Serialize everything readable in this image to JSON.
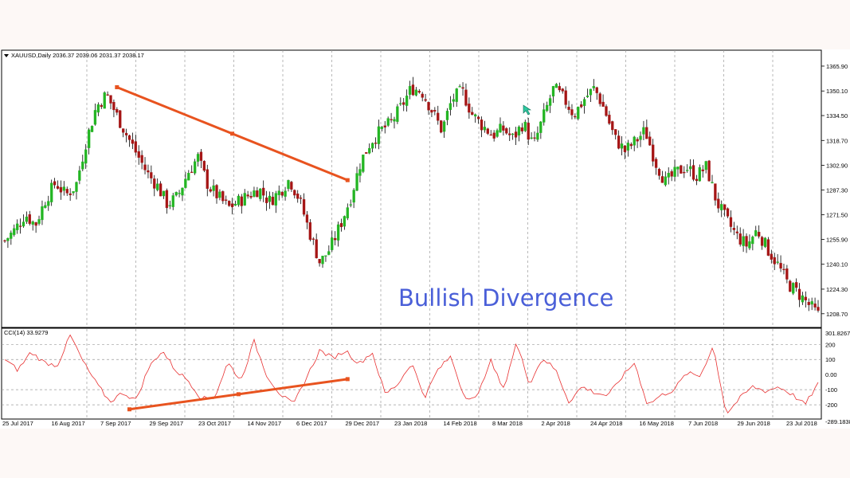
{
  "chart_data": [
    {
      "type": "candlestick",
      "header": "XAUUSD,Daily  2036.37 2039.06 2031.37 2038.17",
      "ylim": [
        1200,
        1376
      ],
      "y_ticks": [
        "1365.90",
        "1350.10",
        "1334.50",
        "1318.70",
        "1302.90",
        "1287.30",
        "1271.50",
        "1255.90",
        "1240.10",
        "1224.30",
        "1208.70"
      ],
      "y_tick_values": [
        1365.9,
        1350.1,
        1334.5,
        1318.7,
        1302.9,
        1287.3,
        1271.5,
        1255.9,
        1240.1,
        1224.3,
        1208.7
      ],
      "x_ticks": [
        "25 Jul 2017",
        "16 Aug 2017",
        "7 Sep 2017",
        "29 Sep 2017",
        "23 Oct 2017",
        "14 Nov 2017",
        "6 Dec 2017",
        "29 Dec 2017",
        "23 Jan 2018",
        "14 Feb 2018",
        "8 Mar 2018",
        "2 Apr 2018",
        "24 Apr 2018",
        "16 May 2018",
        "7 Jun 2018",
        "29 Jun 2018",
        "23 Jul 2018"
      ],
      "close_path": [
        1255,
        1262,
        1272,
        1265,
        1281,
        1292,
        1284,
        1290,
        1318,
        1340,
        1348,
        1335,
        1322,
        1310,
        1298,
        1290,
        1278,
        1283,
        1298,
        1308,
        1290,
        1283,
        1276,
        1280,
        1284,
        1288,
        1280,
        1286,
        1294,
        1281,
        1260,
        1241,
        1250,
        1265,
        1282,
        1305,
        1318,
        1325,
        1330,
        1340,
        1352,
        1350,
        1338,
        1325,
        1345,
        1350,
        1335,
        1328,
        1322,
        1326,
        1320,
        1330,
        1315,
        1334,
        1352,
        1345,
        1335,
        1345,
        1352,
        1338,
        1320,
        1312,
        1318,
        1325,
        1305,
        1292,
        1298,
        1302,
        1296,
        1302,
        1280,
        1268,
        1258,
        1252,
        1262,
        1250,
        1240,
        1228,
        1222,
        1215,
        1208
      ],
      "candle_count": 262,
      "annotation": "Bullish Divergence",
      "trendline": [
        {
          "date_index": 36,
          "value": 1352.5
        },
        {
          "date_index": 110,
          "value": 1293.5
        }
      ],
      "colors": {
        "up": "#23b523",
        "down": "#a51515",
        "trendline": "#e8531f",
        "grid": "#9c9c9c",
        "annotation": "#4a5fd8"
      }
    },
    {
      "type": "line",
      "header": "CCI(14) 33.9279",
      "ylim": [
        -289.1838,
        301.8267
      ],
      "y_ticks": [
        "301.8267",
        "200",
        "100",
        "0.00",
        "-100",
        "-200",
        "-289.1838"
      ],
      "y_tick_values": [
        301.8267,
        200,
        100,
        0,
        -100,
        -200,
        -289.1838
      ],
      "levels": [
        200,
        100,
        -100,
        -200
      ],
      "value_path": [
        100,
        30,
        150,
        80,
        60,
        260,
        80,
        -60,
        -180,
        -120,
        -170,
        50,
        160,
        30,
        -40,
        -160,
        -150,
        80,
        -40,
        220,
        -10,
        -130,
        -200,
        -20,
        160,
        110,
        160,
        70,
        150,
        -130,
        -60,
        80,
        -150,
        30,
        120,
        -140,
        -160,
        100,
        -100,
        210,
        -60,
        110,
        30,
        -180,
        -80,
        -120,
        -140,
        -20,
        80,
        -200,
        -140,
        -100,
        10,
        -10,
        190,
        -260,
        -160,
        -80,
        -110,
        -80,
        -130,
        -200,
        -60
      ],
      "trendline": [
        {
          "date_index": 40,
          "value": -230
        },
        {
          "date_index": 110,
          "value": -30
        }
      ],
      "colors": {
        "line": "#e83030",
        "trendline": "#e8531f"
      }
    }
  ]
}
